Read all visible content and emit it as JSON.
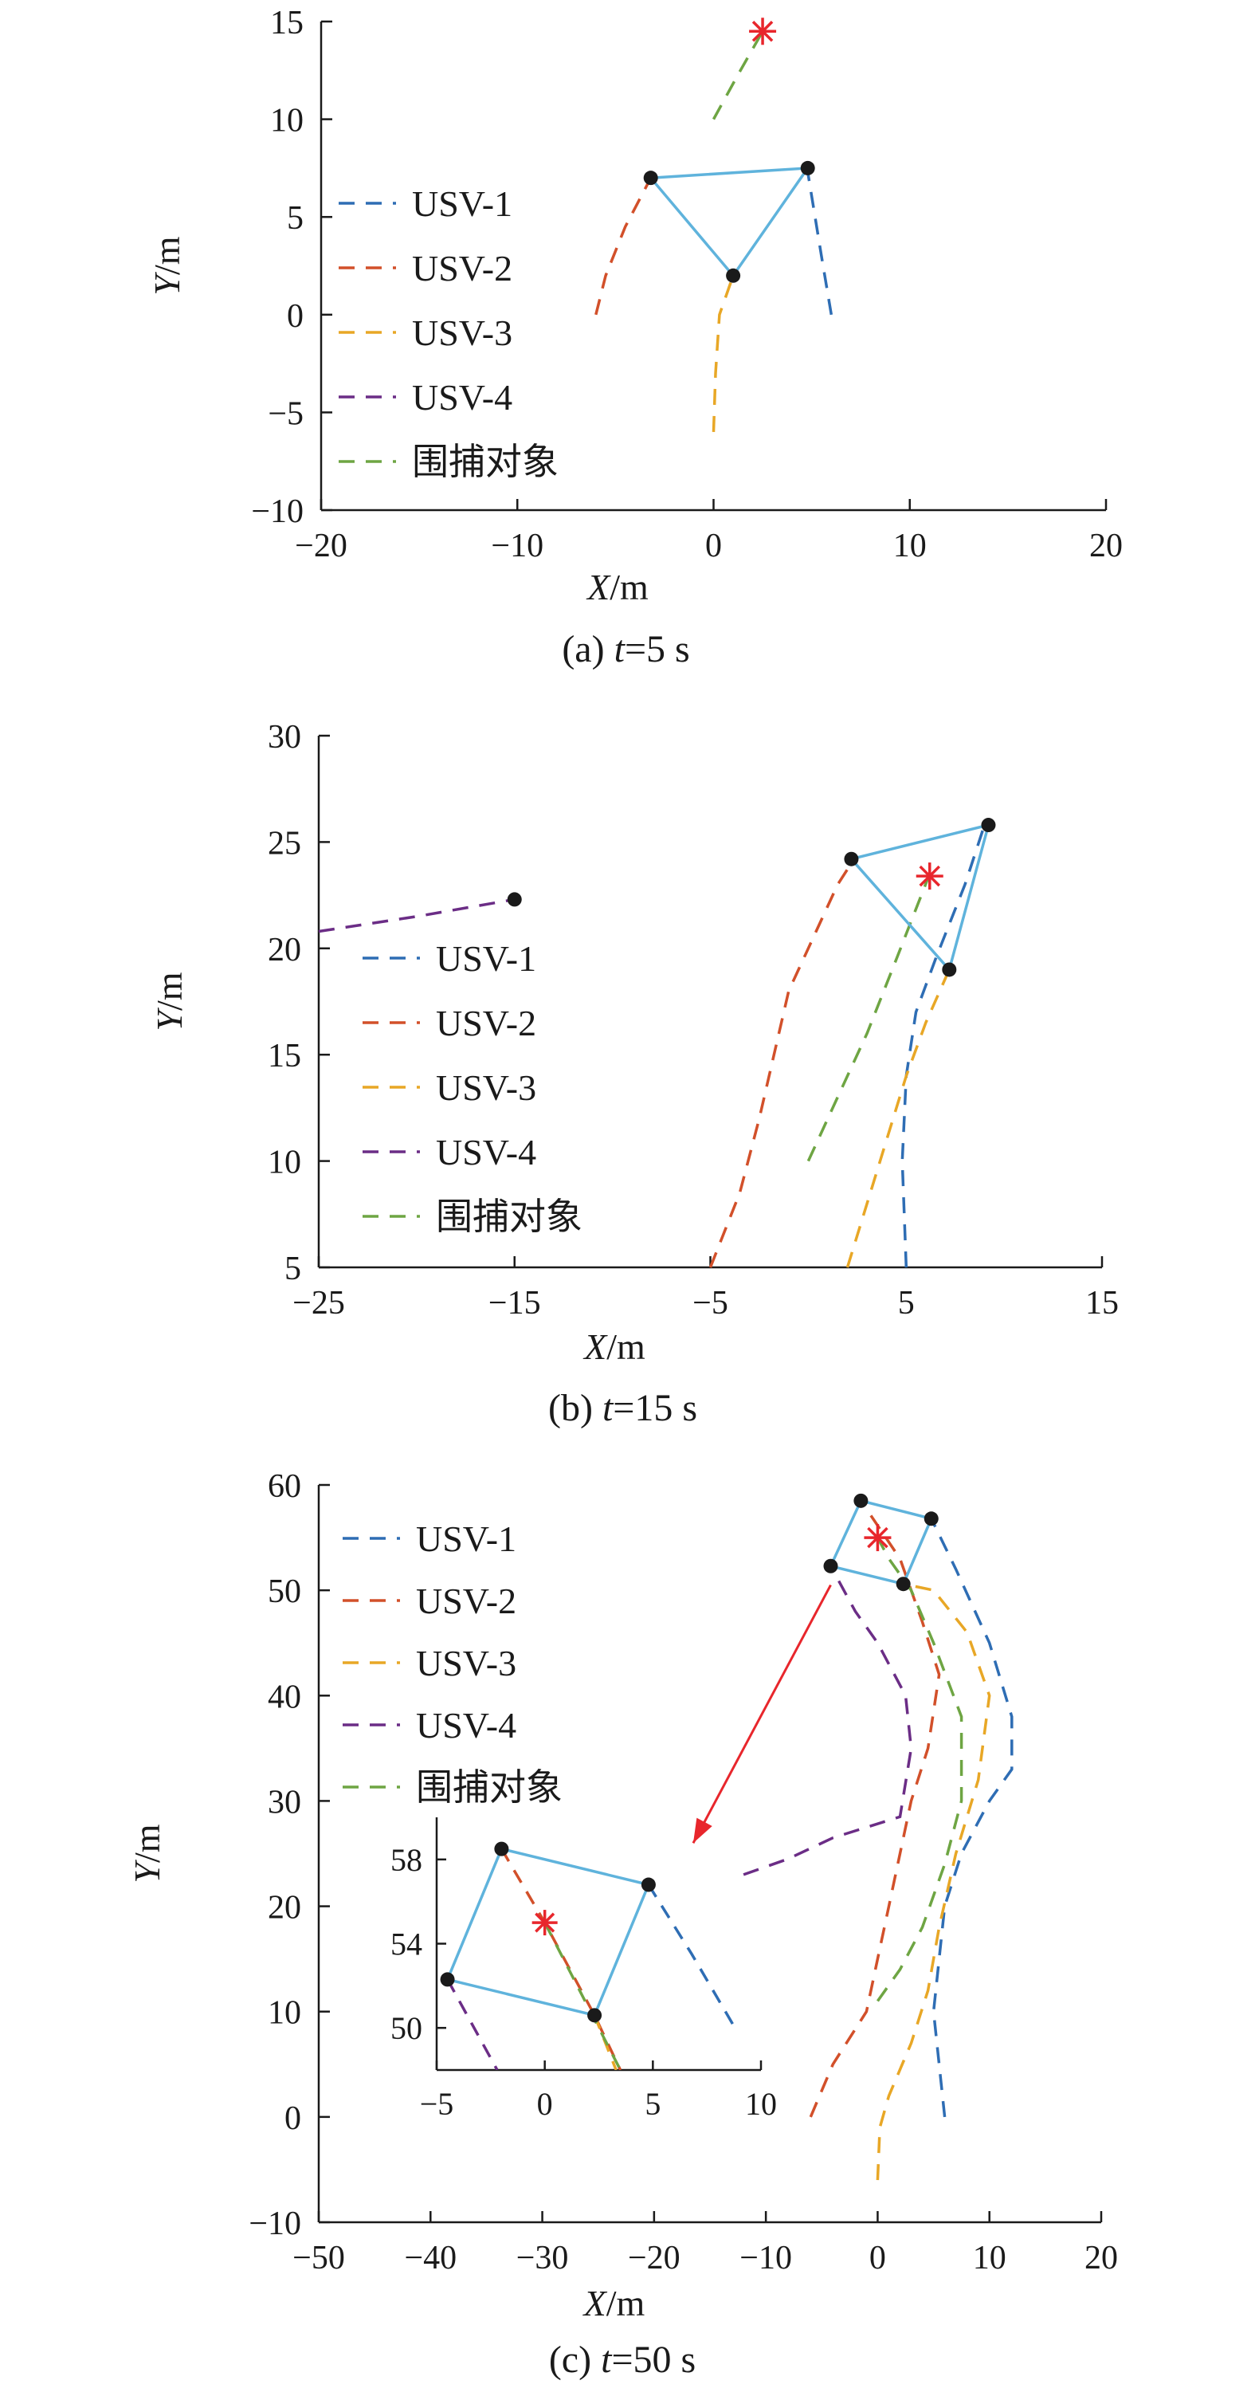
{
  "colors": {
    "USV-1": "#2e6db4",
    "USV-2": "#d2502a",
    "USV-3": "#e8a726",
    "USV-4": "#6b2d86",
    "target": "#6ea543",
    "formation": "#5fb3dc",
    "marker": "#1a1a1a",
    "star": "#e8262c",
    "arrow": "#e8262c"
  },
  "chart_data": [
    {
      "type": "line",
      "caption_prefix": "(a) ",
      "caption_var": "t",
      "caption_rest": "=5 s",
      "xlabel_var": "X",
      "xlabel_unit": "/m",
      "ylabel_var": "Y",
      "ylabel_unit": "/m",
      "xlim": [
        -20,
        20
      ],
      "ylim": [
        -10,
        15
      ],
      "xticks": [
        -20,
        -10,
        0,
        10,
        20
      ],
      "yticks": [
        -10,
        -5,
        0,
        5,
        10,
        15
      ],
      "xtick_labels": [
        "−20",
        "−10",
        "0",
        "10",
        "20"
      ],
      "ytick_labels": [
        "−10",
        "−5",
        "0",
        "5",
        "10",
        "15"
      ],
      "legend": [
        "USV-1",
        "USV-2",
        "USV-3",
        "USV-4",
        "围捕对象"
      ],
      "series": [
        {
          "name": "USV-1",
          "points": [
            [
              6,
              0
            ],
            [
              5.5,
              3
            ],
            [
              4.8,
              7.3
            ]
          ]
        },
        {
          "name": "USV-2",
          "points": [
            [
              -6,
              0
            ],
            [
              -5.5,
              2
            ],
            [
              -4.5,
              4.5
            ],
            [
              -3.2,
              7
            ]
          ]
        },
        {
          "name": "USV-3",
          "points": [
            [
              0,
              -6
            ],
            [
              0.1,
              -3
            ],
            [
              0.3,
              0
            ],
            [
              1,
              2
            ]
          ]
        },
        {
          "name": "围捕对象",
          "points": [
            [
              0,
              10
            ],
            [
              1.2,
              12.2
            ],
            [
              2.5,
              14.5
            ]
          ]
        }
      ],
      "formation": [
        [
          -3.2,
          7
        ],
        [
          4.8,
          7.5
        ],
        [
          1,
          2
        ]
      ],
      "markers": [
        [
          -3.2,
          7
        ],
        [
          4.8,
          7.5
        ],
        [
          1,
          2
        ]
      ],
      "star": [
        2.5,
        14.5
      ]
    },
    {
      "type": "line",
      "caption_prefix": "(b) ",
      "caption_var": "t",
      "caption_rest": "=15 s",
      "xlabel_var": "X",
      "xlabel_unit": "/m",
      "ylabel_var": "Y",
      "ylabel_unit": "/m",
      "xlim": [
        -25,
        15
      ],
      "ylim": [
        5,
        30
      ],
      "xticks": [
        -25,
        -15,
        -5,
        5,
        15
      ],
      "yticks": [
        5,
        10,
        15,
        20,
        25,
        30
      ],
      "xtick_labels": [
        "−25",
        "−15",
        "−5",
        "5",
        "15"
      ],
      "ytick_labels": [
        "5",
        "10",
        "15",
        "20",
        "25",
        "30"
      ],
      "legend": [
        "USV-1",
        "USV-2",
        "USV-3",
        "USV-4",
        "围捕对象"
      ],
      "series": [
        {
          "name": "USV-1",
          "points": [
            [
              5,
              5
            ],
            [
              4.8,
              10
            ],
            [
              5,
              14
            ],
            [
              5.5,
              17
            ],
            [
              6.5,
              19.5
            ],
            [
              8,
              23
            ],
            [
              9,
              25.8
            ]
          ]
        },
        {
          "name": "USV-2",
          "points": [
            [
              -5,
              5
            ],
            [
              -3.5,
              8.5
            ],
            [
              -2.5,
              12
            ],
            [
              -1.5,
              16
            ],
            [
              -1,
              18
            ],
            [
              0,
              20
            ],
            [
              1.5,
              23
            ],
            [
              2.2,
              24
            ]
          ]
        },
        {
          "name": "USV-3",
          "points": [
            [
              2,
              5
            ],
            [
              3,
              8
            ],
            [
              4,
              11
            ],
            [
              5,
              14
            ],
            [
              6,
              16.5
            ],
            [
              7.2,
              19
            ]
          ]
        },
        {
          "name": "USV-4",
          "points": [
            [
              -25,
              20.8
            ],
            [
              -20,
              21.5
            ],
            [
              -15,
              22.3
            ]
          ]
        },
        {
          "name": "围捕对象",
          "points": [
            [
              0,
              10
            ],
            [
              1.5,
              13
            ],
            [
              3,
              16
            ],
            [
              4.5,
              19.5
            ],
            [
              6.2,
              23.5
            ]
          ]
        }
      ],
      "formation": [
        [
          2.2,
          24.2
        ],
        [
          9.2,
          25.8
        ],
        [
          7.2,
          19
        ]
      ],
      "markers": [
        [
          2.2,
          24.2
        ],
        [
          9.2,
          25.8
        ],
        [
          7.2,
          19
        ],
        [
          -15,
          22.3
        ]
      ],
      "star": [
        6.2,
        23.4
      ]
    },
    {
      "type": "line",
      "caption_prefix": "(c) ",
      "caption_var": "t",
      "caption_rest": "=50 s",
      "xlabel_var": "X",
      "xlabel_unit": "/m",
      "ylabel_var": "Y",
      "ylabel_unit": "/m",
      "xlim": [
        -50,
        20
      ],
      "ylim": [
        -10,
        60
      ],
      "xticks": [
        -50,
        -40,
        -30,
        -20,
        -10,
        0,
        10,
        20
      ],
      "yticks": [
        -10,
        0,
        10,
        20,
        30,
        40,
        50,
        60
      ],
      "xtick_labels": [
        "−50",
        "−40",
        "−30",
        "−20",
        "−10",
        "0",
        "10",
        "20"
      ],
      "ytick_labels": [
        "−10",
        "0",
        "10",
        "20",
        "30",
        "40",
        "50",
        "60"
      ],
      "legend": [
        "USV-1",
        "USV-2",
        "USV-3",
        "USV-4",
        "围捕对象"
      ],
      "series": [
        {
          "name": "USV-1",
          "points": [
            [
              6,
              0
            ],
            [
              5,
              10
            ],
            [
              6,
              20
            ],
            [
              7.5,
              25
            ],
            [
              10,
              30
            ],
            [
              12,
              33
            ],
            [
              12,
              38
            ],
            [
              10,
              45
            ],
            [
              7,
              52
            ],
            [
              4.8,
              56.8
            ]
          ]
        },
        {
          "name": "USV-2",
          "points": [
            [
              -6,
              0
            ],
            [
              -4,
              5
            ],
            [
              -1,
              10
            ],
            [
              0,
              15
            ],
            [
              1,
              20
            ],
            [
              2,
              25
            ],
            [
              3,
              30
            ],
            [
              4.5,
              35
            ],
            [
              5.5,
              42
            ],
            [
              4,
              47
            ],
            [
              2,
              53
            ],
            [
              -1.5,
              58.5
            ]
          ]
        },
        {
          "name": "USV-3",
          "points": [
            [
              0,
              -6
            ],
            [
              0.2,
              -1
            ],
            [
              1,
              2
            ],
            [
              3,
              7
            ],
            [
              4.5,
              12
            ],
            [
              5.5,
              18
            ],
            [
              7,
              25
            ],
            [
              9,
              32
            ],
            [
              10,
              40
            ],
            [
              8,
              46
            ],
            [
              5,
              50
            ],
            [
              2.3,
              50.6
            ]
          ]
        },
        {
          "name": "USV-4",
          "points": [
            [
              -12,
              23
            ],
            [
              -8,
              24.5
            ],
            [
              -4,
              26.5
            ],
            [
              2,
              28.5
            ],
            [
              3,
              35
            ],
            [
              2.5,
              40
            ],
            [
              0,
              45
            ],
            [
              -2,
              48
            ],
            [
              -4.2,
              52.3
            ]
          ]
        },
        {
          "name": "围捕对象",
          "points": [
            [
              0,
              11
            ],
            [
              2,
              14
            ],
            [
              4,
              18
            ],
            [
              6,
              24
            ],
            [
              7.5,
              30
            ],
            [
              7.5,
              38
            ],
            [
              5,
              45
            ],
            [
              3,
              50
            ],
            [
              1,
              53
            ],
            [
              0,
              55
            ]
          ]
        }
      ],
      "formation": [
        [
          -1.5,
          58.5
        ],
        [
          4.8,
          56.8
        ],
        [
          2.3,
          50.6
        ],
        [
          -4.2,
          52.3
        ]
      ],
      "markers": [
        [
          -1.5,
          58.5
        ],
        [
          4.8,
          56.8
        ],
        [
          2.3,
          50.6
        ],
        [
          -4.2,
          52.3
        ]
      ],
      "star": [
        0,
        55
      ],
      "arrow": {
        "from": [
          -4.2,
          50.5
        ],
        "to": [
          -16.5,
          26
        ]
      },
      "inset": {
        "xlim": [
          -5,
          10
        ],
        "ylim": [
          48,
          60
        ],
        "xticks": [
          -5,
          0,
          5,
          10
        ],
        "yticks": [
          50,
          54,
          58
        ],
        "xtick_labels": [
          "−5",
          "0",
          "5",
          "10"
        ],
        "ytick_labels": [
          "50",
          "54",
          "58"
        ],
        "series": [
          {
            "name": "USV-1",
            "points": [
              [
                4.8,
                56.8
              ],
              [
                6.8,
                53.5
              ],
              [
                8.8,
                50
              ]
            ]
          },
          {
            "name": "USV-2",
            "points": [
              [
                -2,
                58.5
              ],
              [
                0,
                55
              ],
              [
                2.3,
                50.6
              ],
              [
                3.5,
                48
              ]
            ]
          },
          {
            "name": "USV-3",
            "points": [
              [
                2.3,
                50.6
              ],
              [
                3.3,
                48
              ]
            ]
          },
          {
            "name": "USV-4",
            "points": [
              [
                -4.5,
                52.3
              ],
              [
                -2.2,
                48
              ]
            ]
          },
          {
            "name": "围捕对象",
            "points": [
              [
                0,
                55
              ],
              [
                1.5,
                52
              ],
              [
                2.5,
                50
              ],
              [
                3.5,
                48
              ]
            ]
          }
        ],
        "formation": [
          [
            -2,
            58.5
          ],
          [
            4.8,
            56.8
          ],
          [
            2.3,
            50.6
          ],
          [
            -4.5,
            52.3
          ]
        ],
        "markers": [
          [
            -2,
            58.5
          ],
          [
            4.8,
            56.8
          ],
          [
            2.3,
            50.6
          ],
          [
            -4.5,
            52.3
          ]
        ],
        "star": [
          0,
          55
        ]
      }
    }
  ]
}
